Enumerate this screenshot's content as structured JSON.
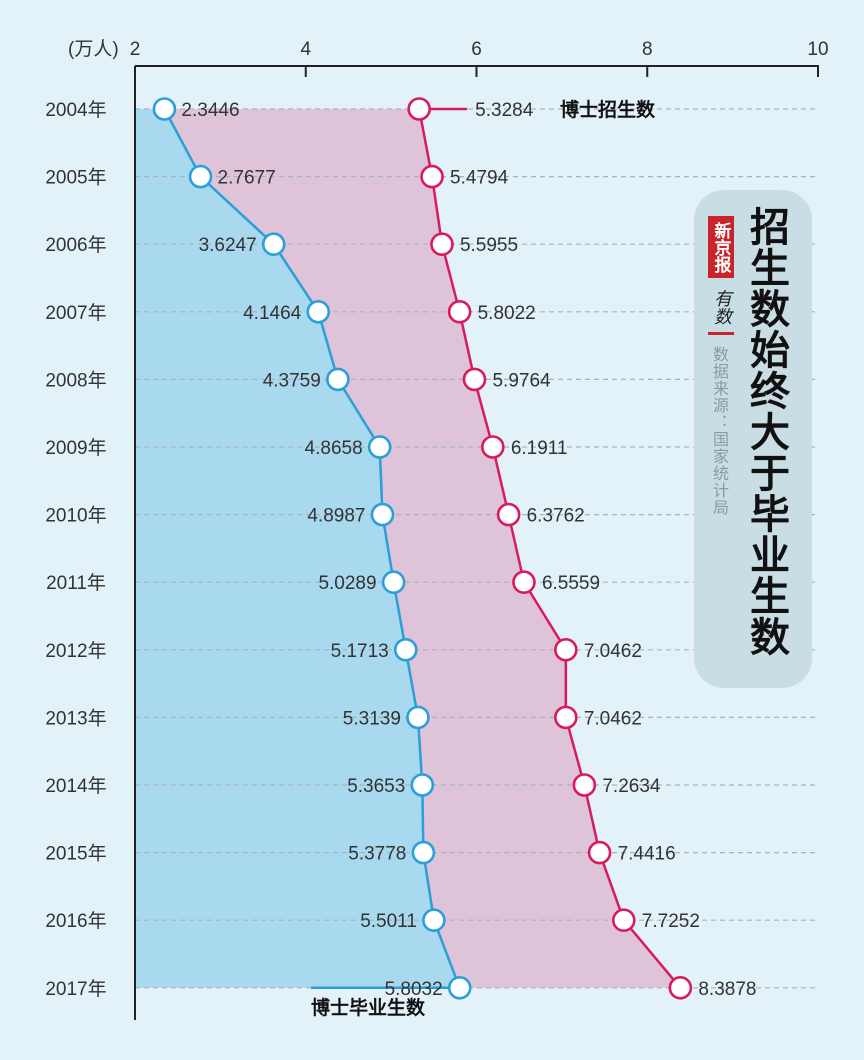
{
  "chart_data": {
    "type": "line",
    "unit_label": "(万人)",
    "xlim": [
      2,
      10
    ],
    "x_ticks": [
      2,
      4,
      6,
      8,
      10
    ],
    "categories": [
      "2004年",
      "2005年",
      "2006年",
      "2007年",
      "2008年",
      "2009年",
      "2010年",
      "2011年",
      "2012年",
      "2013年",
      "2014年",
      "2015年",
      "2016年",
      "2017年"
    ],
    "series": [
      {
        "name": "博士招生数",
        "color": "#d81b60",
        "values": [
          "5.3284",
          "5.4794",
          "5.5955",
          "5.8022",
          "5.9764",
          "6.1911",
          "6.3762",
          "6.5559",
          "7.0462",
          "7.0462",
          "7.2634",
          "7.4416",
          "7.7252",
          "8.3878"
        ]
      },
      {
        "name": "博士毕业生数",
        "color": "#2a9fd8",
        "values": [
          "2.3446",
          "2.7677",
          "3.6247",
          "4.1464",
          "4.3759",
          "4.8658",
          "4.8987",
          "5.0289",
          "5.1713",
          "5.3139",
          "5.3653",
          "5.3778",
          "5.5011",
          "5.8032"
        ]
      }
    ],
    "grid": true,
    "fill_colors": {
      "graduates": "#a9d9ef",
      "gap": "#dfc3d9"
    },
    "title": "招生数始终大于毕业生数",
    "source": "数据来源：国家统计局",
    "logo_text": [
      "新京报",
      "有数"
    ]
  }
}
